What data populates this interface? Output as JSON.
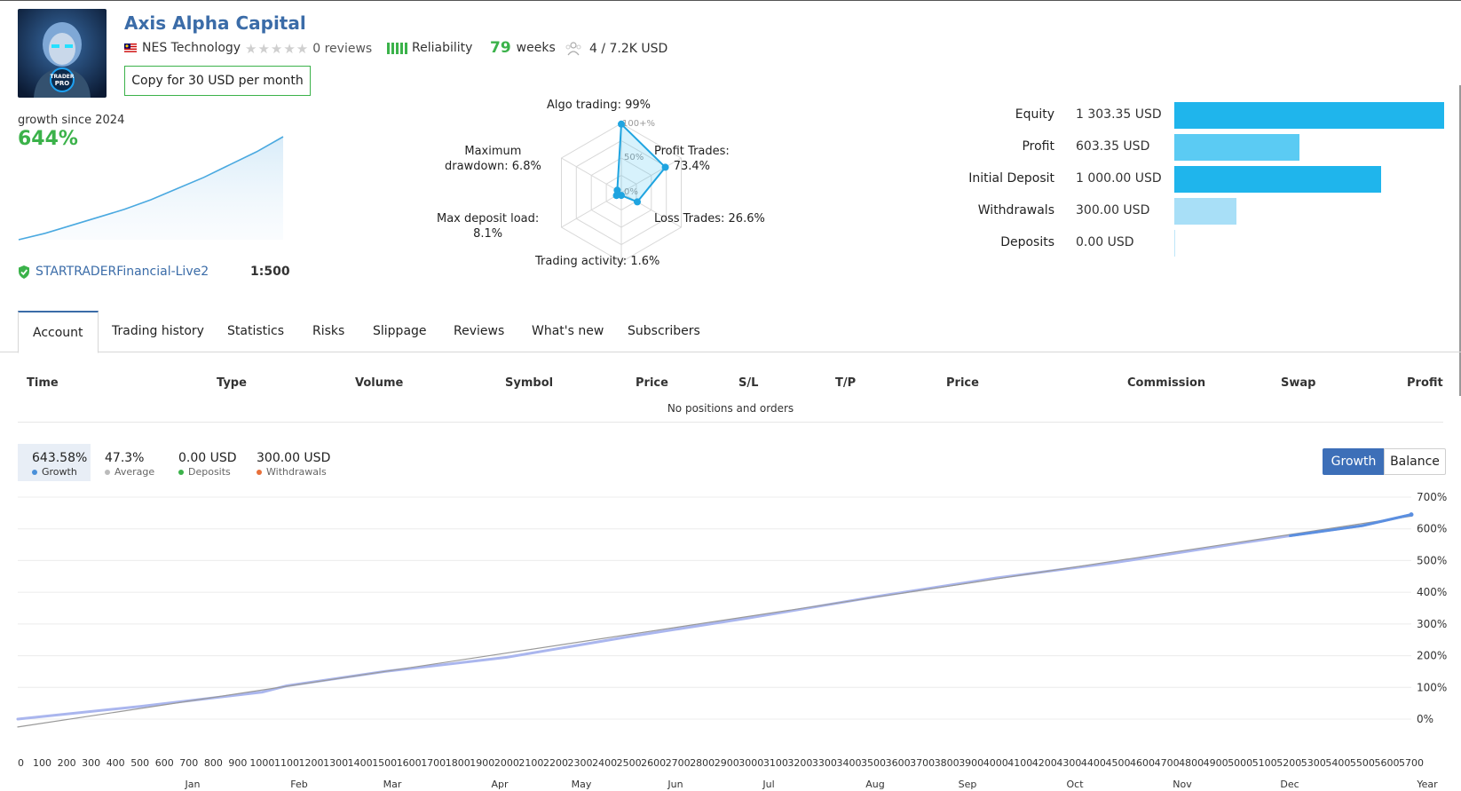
{
  "header": {
    "title": "Axis Alpha Capital",
    "developer": "NES Technology",
    "reviews": "0 reviews",
    "reliability_label": "Reliability",
    "weeks_value": "79",
    "weeks_label": "weeks",
    "subscribers": "4 / 7.2K USD",
    "copy_button": "Copy for 30 USD per month",
    "avatar_text": [
      "TRADER",
      "PRO"
    ]
  },
  "summary": {
    "growth_label": "growth since 2024",
    "growth_value": "644%",
    "server": "STARTRADERFinancial-Live2",
    "leverage": "1:500"
  },
  "radar": {
    "algo": "Algo trading: 99%",
    "profit_trades_1": "Profit Trades:",
    "profit_trades_2": "73.4%",
    "loss_trades": "Loss Trades: 26.6%",
    "activity": "Trading activity: 1.6%",
    "deposit_load_1": "Max deposit load:",
    "deposit_load_2": "8.1%",
    "drawdown_1": "Maximum",
    "drawdown_2": "drawdown: 6.8%",
    "scale_100": "100+%",
    "scale_50": "50%",
    "scale_0": "0%"
  },
  "financials": [
    {
      "label": "Equity",
      "value": "1 303.35 USD",
      "amount": 1303.35,
      "color": "#1fb5ec"
    },
    {
      "label": "Profit",
      "value": "603.35 USD",
      "amount": 603.35,
      "color": "#5bcbf3"
    },
    {
      "label": "Initial Deposit",
      "value": "1 000.00 USD",
      "amount": 1000.0,
      "color": "#1fb5ec"
    },
    {
      "label": "Withdrawals",
      "value": "300.00 USD",
      "amount": 300.0,
      "color": "#a8dff7"
    },
    {
      "label": "Deposits",
      "value": "0.00 USD",
      "amount": 0.0,
      "color": "#a8dff7"
    }
  ],
  "tabs": [
    "Account",
    "Trading history",
    "Statistics",
    "Risks",
    "Slippage",
    "Reviews",
    "What's new",
    "Subscribers"
  ],
  "table": {
    "headers": [
      "Time",
      "Type",
      "Volume",
      "Symbol",
      "Price",
      "S/L",
      "T/P",
      "Price",
      "Commission",
      "Swap",
      "Profit"
    ],
    "empty_text": "No positions and orders"
  },
  "stats": [
    {
      "value": "643.58%",
      "label": "Growth",
      "color": "#4a90d9"
    },
    {
      "value": "47.3%",
      "label": "Average",
      "color": "#bbbbbb"
    },
    {
      "value": "0.00 USD",
      "label": "Deposits",
      "color": "#3bb24a"
    },
    {
      "value": "300.00 USD",
      "label": "Withdrawals",
      "color": "#e8703a"
    }
  ],
  "chart_toggle": {
    "growth": "Growth",
    "balance": "Balance"
  },
  "mini_chart": {
    "type": "area",
    "x": [
      0,
      10,
      20,
      30,
      40,
      50,
      60,
      70,
      80,
      90,
      100
    ],
    "values": [
      0,
      40,
      90,
      140,
      190,
      250,
      320,
      390,
      470,
      550,
      644
    ]
  },
  "chart_data": [
    {
      "type": "radar",
      "axes": [
        "Algo trading",
        "Profit Trades",
        "Loss Trades",
        "Trading activity",
        "Max deposit load",
        "Maximum drawdown"
      ],
      "values": [
        99,
        73.4,
        26.6,
        1.6,
        8.1,
        6.8
      ],
      "scale_labels": [
        "0%",
        "50%",
        "100+%"
      ]
    },
    {
      "type": "bar",
      "orientation": "horizontal",
      "categories": [
        "Equity",
        "Profit",
        "Initial Deposit",
        "Withdrawals",
        "Deposits"
      ],
      "values": [
        1303.35,
        603.35,
        1000.0,
        300.0,
        0.0
      ],
      "unit": "USD"
    },
    {
      "type": "line",
      "ylim": [
        -30,
        700
      ],
      "y_ticks": [
        "0%",
        "100%",
        "200%",
        "300%",
        "400%",
        "500%",
        "600%",
        "700%"
      ],
      "y_tick_values": [
        0,
        100,
        200,
        300,
        400,
        500,
        600,
        700
      ],
      "x_ticks": [
        "0",
        "100",
        "200",
        "300",
        "400",
        "500",
        "600",
        "700",
        "800",
        "900",
        "1000",
        "1100",
        "1200",
        "1300",
        "1400",
        "1500",
        "1600",
        "1700",
        "1800",
        "1900",
        "2000",
        "2100",
        "2200",
        "2300",
        "2400",
        "2500",
        "2600",
        "2700",
        "2800",
        "2900",
        "3000",
        "3100",
        "3200",
        "3300",
        "3400",
        "3500",
        "3600",
        "3700",
        "3800",
        "3900",
        "4000",
        "4100",
        "4200",
        "4300",
        "4400",
        "4500",
        "4600",
        "4700",
        "4800",
        "4900",
        "5000",
        "5100",
        "5200",
        "5300",
        "5400",
        "5500",
        "5600",
        "5700"
      ],
      "x_range": [
        0,
        5700
      ],
      "month_labels": [
        "Jan",
        "Feb",
        "Mar",
        "Apr",
        "May",
        "Jun",
        "Jul",
        "Aug",
        "Sep",
        "Oct",
        "Nov",
        "Dec",
        "Year"
      ],
      "series": [
        {
          "name": "Growth",
          "color": "#aab6ee",
          "x": [
            0,
            500,
            1000,
            1100,
            1500,
            2000,
            2500,
            3000,
            3500,
            4000,
            4500,
            5000,
            5200,
            5500,
            5700
          ],
          "values": [
            0,
            40,
            85,
            105,
            150,
            195,
            260,
            320,
            385,
            445,
            495,
            555,
            578,
            610,
            645
          ]
        },
        {
          "name": "Average",
          "color": "#999999",
          "x": [
            0,
            5700
          ],
          "values": [
            -25,
            640
          ]
        }
      ],
      "grid": true
    }
  ]
}
